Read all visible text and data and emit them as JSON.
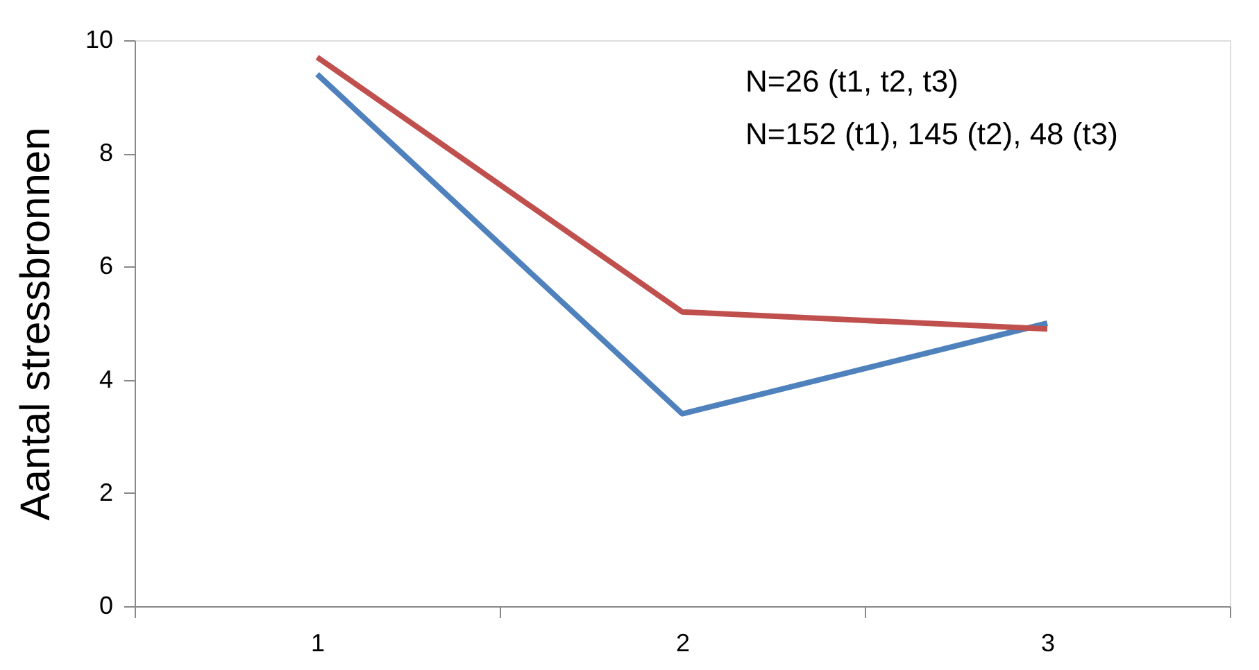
{
  "chart_data": {
    "type": "line",
    "ylabel": "Aantal stressbronnen",
    "categories": [
      "1",
      "2",
      "3"
    ],
    "series": [
      {
        "color": "#4f81bd",
        "values": [
          9.4,
          3.4,
          5.0
        ]
      },
      {
        "color": "#c0504d",
        "values": [
          9.7,
          5.2,
          4.9
        ]
      }
    ],
    "ylim": [
      0,
      10
    ],
    "yticks": [
      0,
      2,
      4,
      6,
      8,
      10
    ],
    "grid": false,
    "marker": "none",
    "line_style": "solid",
    "annotations": [
      "N=26 (t1, t2, t3)",
      "N=152 (t1), 145 (t2), 48 (t3)"
    ]
  }
}
